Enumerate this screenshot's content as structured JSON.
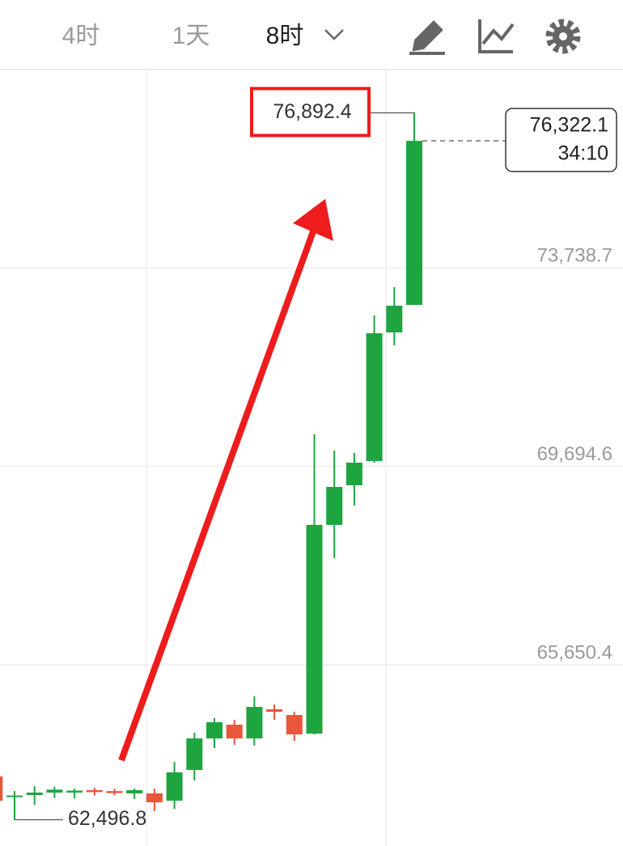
{
  "header": {
    "tabs": [
      "4时",
      "1天",
      "8时"
    ]
  },
  "chart_data": {
    "type": "candlestick",
    "open": [
      63380,
      62960,
      63000,
      63050,
      63050,
      63100,
      63080,
      63033,
      63033,
      62885,
      63510,
      64153,
      64432,
      64153,
      64746,
      64630,
      64251,
      68501,
      69308,
      69802,
      72421,
      72981
    ],
    "high": [
      63380,
      63080,
      63180,
      63170,
      63130,
      63150,
      63130,
      63132,
      63132,
      63675,
      64268,
      64565,
      64532,
      65010,
      64845,
      64696,
      70346,
      70016,
      69967,
      72767,
      73343,
      76892.4
    ],
    "low": [
      62885,
      62496.8,
      62800,
      62940,
      62930,
      62990,
      62990,
      62918,
      62670,
      62720,
      63297,
      63955,
      64021,
      64004,
      64532,
      64103,
      64235,
      67826,
      68896,
      69769,
      72157,
      72981
    ],
    "close": [
      62885,
      62990,
      63050,
      63110,
      63090,
      63060,
      63040,
      63099,
      62852,
      63461,
      64153,
      64482,
      64153,
      64795,
      64696,
      64235,
      68501,
      69275,
      69769,
      72405,
      72965,
      76322.1
    ],
    "up_color": "#1fa53f",
    "down_color": "#e8563b",
    "ylim": [
      61962,
      77757
    ],
    "yticks": [
      {
        "value": 65650.4,
        "label": "65,650.4"
      },
      {
        "value": 69694.6,
        "label": "69,694.6"
      },
      {
        "value": 73738.7,
        "label": "73,738.7"
      }
    ],
    "grid": true,
    "max_label": "76,892.4",
    "min_label": "62,496.8",
    "last_price_label": "76,322.1",
    "countdown": "34:10"
  }
}
